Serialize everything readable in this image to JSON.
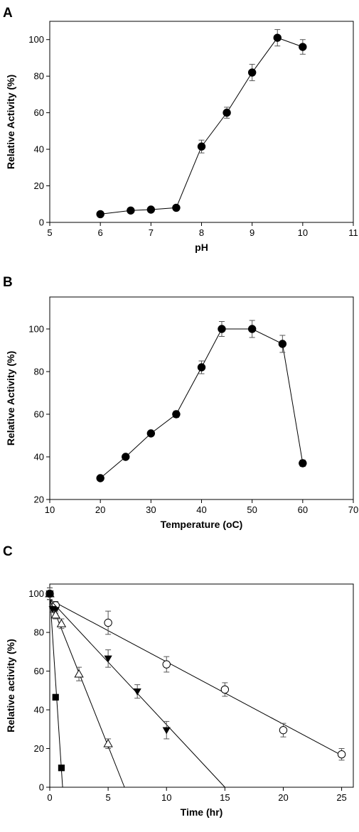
{
  "chart_data": [
    {
      "panel": "A",
      "type": "line",
      "xlabel": "pH",
      "ylabel": "Relative Activity (%)",
      "xlim": [
        5,
        11
      ],
      "ylim": [
        0,
        110
      ],
      "xticks": [
        5,
        6,
        7,
        8,
        9,
        10,
        11
      ],
      "yticks": [
        0,
        20,
        40,
        60,
        80,
        100
      ],
      "grid": false,
      "series": [
        {
          "marker": "filled-circle",
          "x": [
            6,
            6.6,
            7,
            7.5,
            8,
            8.5,
            9,
            9.5,
            10
          ],
          "y": [
            4.5,
            6.5,
            7,
            8,
            41.5,
            60,
            82,
            101,
            96
          ],
          "err": [
            0.8,
            0.8,
            0.8,
            0.8,
            3.5,
            3,
            4.5,
            4.5,
            4
          ]
        }
      ]
    },
    {
      "panel": "B",
      "type": "line",
      "xlabel": "Temperature (oC)",
      "ylabel": "Relative Activity (%)",
      "xlim": [
        10,
        70
      ],
      "ylim": [
        20,
        115
      ],
      "xticks": [
        10,
        20,
        30,
        40,
        50,
        60,
        70
      ],
      "yticks": [
        20,
        40,
        60,
        80,
        100
      ],
      "grid": false,
      "series": [
        {
          "marker": "filled-circle",
          "x": [
            20,
            25,
            30,
            35,
            40,
            44,
            50,
            56,
            60
          ],
          "y": [
            30,
            40,
            51,
            60,
            82,
            100,
            100,
            93,
            37
          ],
          "err": [
            0.8,
            0.8,
            0.8,
            1.5,
            3,
            3.5,
            4,
            4,
            1.5
          ]
        }
      ]
    },
    {
      "panel": "C",
      "type": "scatter",
      "xlabel": "Time (hr)",
      "ylabel": "Relative activity (%)",
      "xlim": [
        0,
        26
      ],
      "ylim": [
        0,
        105
      ],
      "xticks": [
        0,
        5,
        10,
        15,
        20,
        25
      ],
      "yticks": [
        0,
        20,
        40,
        60,
        80,
        100
      ],
      "grid": false,
      "series": [
        {
          "marker": "open-circle",
          "x": [
            0,
            0.5,
            5,
            10,
            15,
            20,
            25
          ],
          "y": [
            100,
            94,
            85,
            63.5,
            50.5,
            29.5,
            17
          ],
          "err": [
            3,
            2,
            6,
            4,
            3.5,
            3.5,
            3
          ],
          "fit": [
            [
              0,
              97
            ],
            [
              25,
              16.5
            ]
          ]
        },
        {
          "marker": "filled-triangle-down",
          "x": [
            0,
            0.25,
            0.5,
            5,
            7.5,
            10
          ],
          "y": [
            100,
            92,
            91.5,
            66.5,
            49.5,
            29.5
          ],
          "err": [
            3,
            1.5,
            1.5,
            4.5,
            3.5,
            4.5
          ],
          "fit": [
            [
              0,
              97
            ],
            [
              15,
              0
            ]
          ]
        },
        {
          "marker": "open-triangle-up",
          "x": [
            0,
            0.5,
            1,
            2.5,
            5
          ],
          "y": [
            100,
            89,
            84.5,
            58.5,
            22.5
          ],
          "err": [
            3,
            2,
            2.5,
            3.5,
            2.5
          ],
          "fit": [
            [
              0,
              97
            ],
            [
              6.4,
              0
            ]
          ]
        },
        {
          "marker": "filled-square",
          "x": [
            0,
            0.5,
            1
          ],
          "y": [
            100,
            46.5,
            10
          ],
          "err": [
            3,
            1.5,
            1
          ],
          "fit": [
            [
              0,
              100
            ],
            [
              1.1,
              0
            ]
          ]
        }
      ]
    }
  ]
}
